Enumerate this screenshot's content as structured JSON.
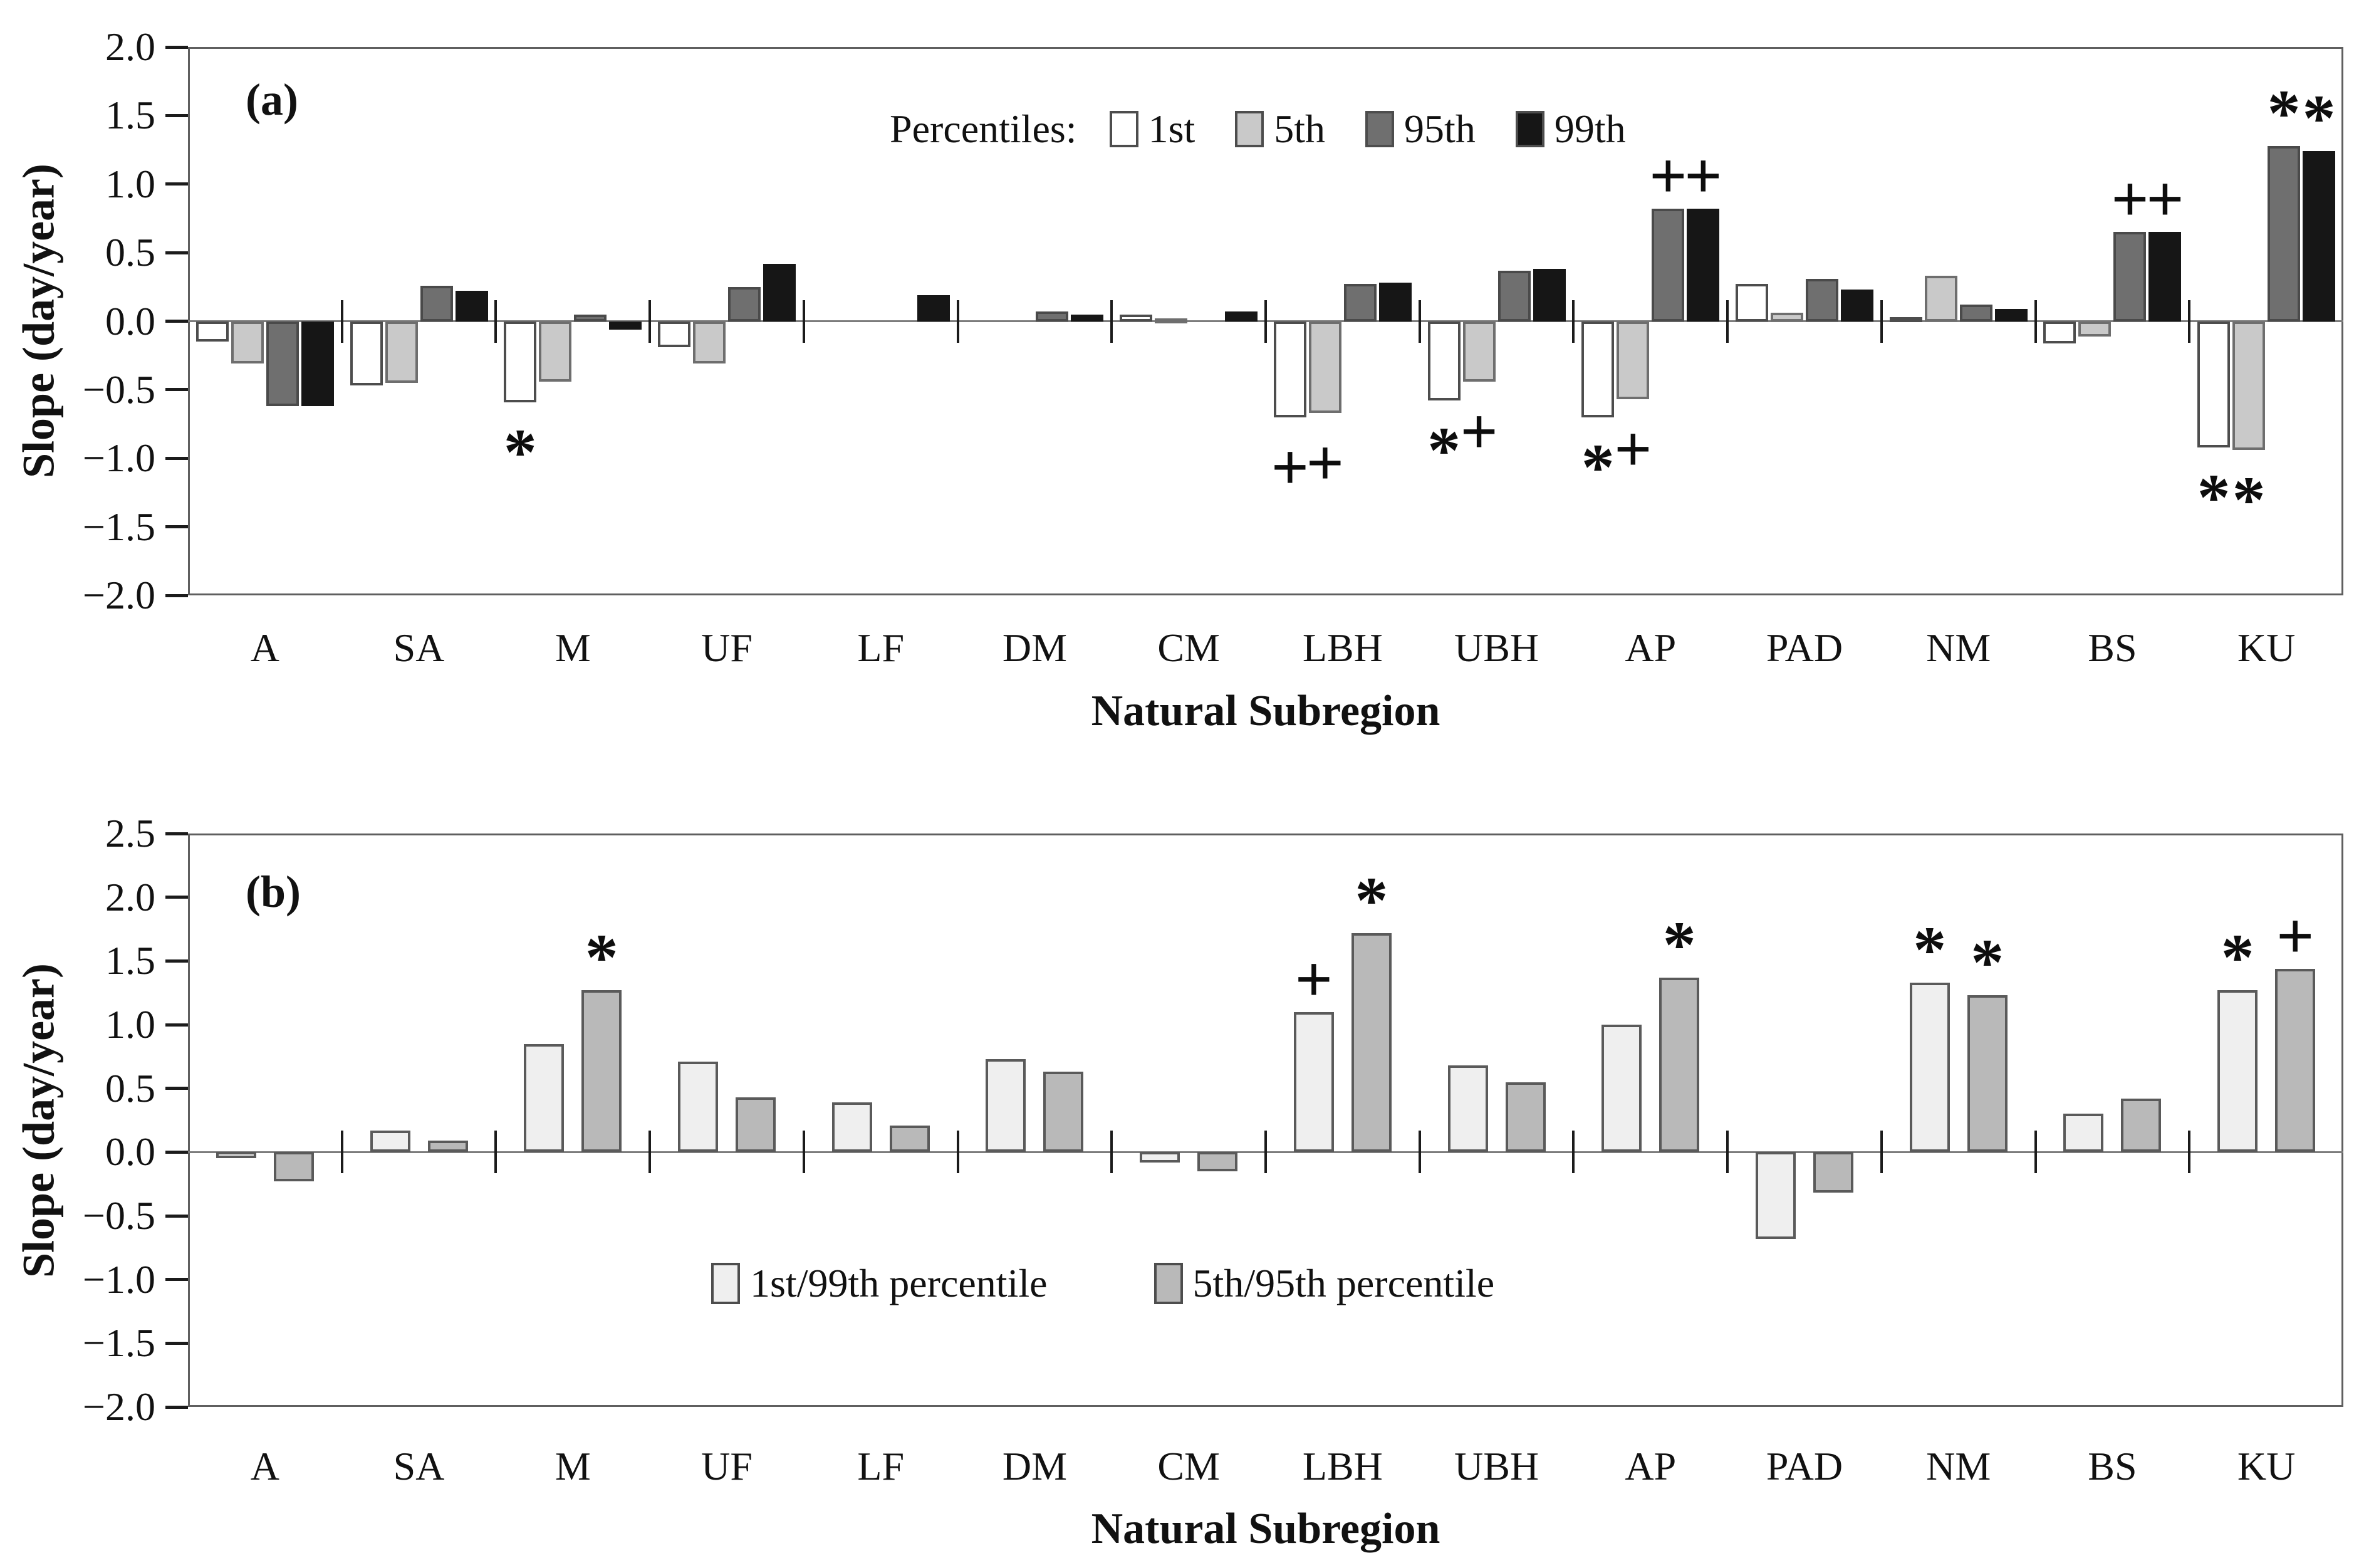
{
  "figure": {
    "panels": [
      "(a)",
      "(b)"
    ]
  },
  "chart_data": [
    {
      "type": "bar",
      "panel": "a",
      "title": "(a)",
      "xlabel": "Natural Subregion",
      "ylabel": "Slope (day/year)",
      "ylim": [
        -2.0,
        2.0
      ],
      "ytick_step": 0.5,
      "ytick_labels": [
        "2.0",
        "1.5",
        "1.0",
        "0.5",
        "0.0",
        "−0.5",
        "−1.0",
        "−1.5",
        "−2.0"
      ],
      "grid": false,
      "legend_title": "Percentiles:",
      "legend_position": "top-center-inside",
      "categories": [
        "A",
        "SA",
        "M",
        "UF",
        "LF",
        "DM",
        "CM",
        "LBH",
        "UBH",
        "AP",
        "PAD",
        "NM",
        "BS",
        "KU"
      ],
      "series": [
        {
          "name": "1st",
          "color": "#ffffff",
          "border": "#4d4d4d",
          "values": [
            -0.15,
            -0.47,
            -0.59,
            -0.19,
            0,
            0,
            0.05,
            -0.7,
            -0.58,
            -0.7,
            0.27,
            0.03,
            -0.16,
            -0.92
          ]
        },
        {
          "name": "5th",
          "color": "#c9c9c9",
          "border": "#6e6e6e",
          "values": [
            -0.31,
            -0.45,
            -0.44,
            -0.31,
            0,
            0,
            0.02,
            -0.67,
            -0.44,
            -0.57,
            0.06,
            0.33,
            -0.11,
            -0.94
          ]
        },
        {
          "name": "95th",
          "color": "#6f6f6f",
          "border": "#4a4a4a",
          "values": [
            -0.62,
            0.26,
            0.05,
            0.25,
            0,
            0.07,
            0,
            0.27,
            0.37,
            0.82,
            0.31,
            0.12,
            0.65,
            1.28
          ]
        },
        {
          "name": "99th",
          "color": "#161616",
          "border": "#161616",
          "values": [
            -0.62,
            0.22,
            -0.06,
            0.42,
            0.19,
            0.05,
            0.07,
            0.28,
            0.38,
            0.82,
            0.23,
            0.09,
            0.65,
            1.24
          ]
        }
      ],
      "annotations": [
        {
          "category": "M",
          "series": "1st",
          "symbol": "*",
          "placement": "below"
        },
        {
          "category": "LBH",
          "series": "1st",
          "symbol": "+",
          "placement": "below"
        },
        {
          "category": "LBH",
          "series": "5th",
          "symbol": "+",
          "placement": "below"
        },
        {
          "category": "UBH",
          "series": "1st",
          "symbol": "*",
          "placement": "below"
        },
        {
          "category": "UBH",
          "series": "5th",
          "symbol": "+",
          "placement": "below"
        },
        {
          "category": "AP",
          "series": "1st",
          "symbol": "*",
          "placement": "below"
        },
        {
          "category": "AP",
          "series": "5th",
          "symbol": "+",
          "placement": "below"
        },
        {
          "category": "AP",
          "series": "95th",
          "symbol": "+",
          "placement": "above"
        },
        {
          "category": "AP",
          "series": "99th",
          "symbol": "+",
          "placement": "above"
        },
        {
          "category": "BS",
          "series": "95th",
          "symbol": "+",
          "placement": "above"
        },
        {
          "category": "BS",
          "series": "99th",
          "symbol": "+",
          "placement": "above"
        },
        {
          "category": "KU",
          "series": "1st",
          "symbol": "*",
          "placement": "below"
        },
        {
          "category": "KU",
          "series": "5th",
          "symbol": "*",
          "placement": "below"
        },
        {
          "category": "KU",
          "series": "95th",
          "symbol": "*",
          "placement": "above"
        },
        {
          "category": "KU",
          "series": "99th",
          "symbol": "*",
          "placement": "above"
        }
      ]
    },
    {
      "type": "bar",
      "panel": "b",
      "title": "(b)",
      "xlabel": "Natural Subregion",
      "ylabel": "Slope (day/year)",
      "ylim": [
        -2.0,
        2.5
      ],
      "ytick_step": 0.5,
      "ytick_labels": [
        "2.5",
        "2.0",
        "1.5",
        "1.0",
        "0.5",
        "0.0",
        "−0.5",
        "−1.0",
        "−1.5",
        "−2.0"
      ],
      "grid": false,
      "legend_title": "",
      "legend_position": "bottom-center-inside",
      "categories": [
        "A",
        "SA",
        "M",
        "UF",
        "LF",
        "DM",
        "CM",
        "LBH",
        "UBH",
        "AP",
        "PAD",
        "NM",
        "BS",
        "KU"
      ],
      "series": [
        {
          "name": "1st/99th percentile",
          "color": "#efefef",
          "border": "#5a5a5a",
          "values": [
            -0.05,
            0.17,
            0.85,
            0.71,
            0.39,
            0.73,
            -0.08,
            1.1,
            0.68,
            1.0,
            -0.68,
            1.33,
            0.3,
            1.27
          ]
        },
        {
          "name": "5th/95th percentile",
          "color": "#b9b9b9",
          "border": "#5a5a5a",
          "values": [
            -0.23,
            0.09,
            1.27,
            0.43,
            0.21,
            0.63,
            -0.15,
            1.72,
            0.55,
            1.37,
            -0.32,
            1.23,
            0.42,
            1.44
          ]
        }
      ],
      "annotations": [
        {
          "category": "M",
          "series": "5th/95th percentile",
          "symbol": "*",
          "placement": "above"
        },
        {
          "category": "LBH",
          "series": "1st/99th percentile",
          "symbol": "+",
          "placement": "above"
        },
        {
          "category": "LBH",
          "series": "5th/95th percentile",
          "symbol": "*",
          "placement": "above"
        },
        {
          "category": "AP",
          "series": "5th/95th percentile",
          "symbol": "*",
          "placement": "above"
        },
        {
          "category": "NM",
          "series": "1st/99th percentile",
          "symbol": "*",
          "placement": "above"
        },
        {
          "category": "NM",
          "series": "5th/95th percentile",
          "symbol": "*",
          "placement": "above"
        },
        {
          "category": "KU",
          "series": "1st/99th percentile",
          "symbol": "*",
          "placement": "above"
        },
        {
          "category": "KU",
          "series": "5th/95th percentile",
          "symbol": "+",
          "placement": "above"
        }
      ]
    }
  ]
}
